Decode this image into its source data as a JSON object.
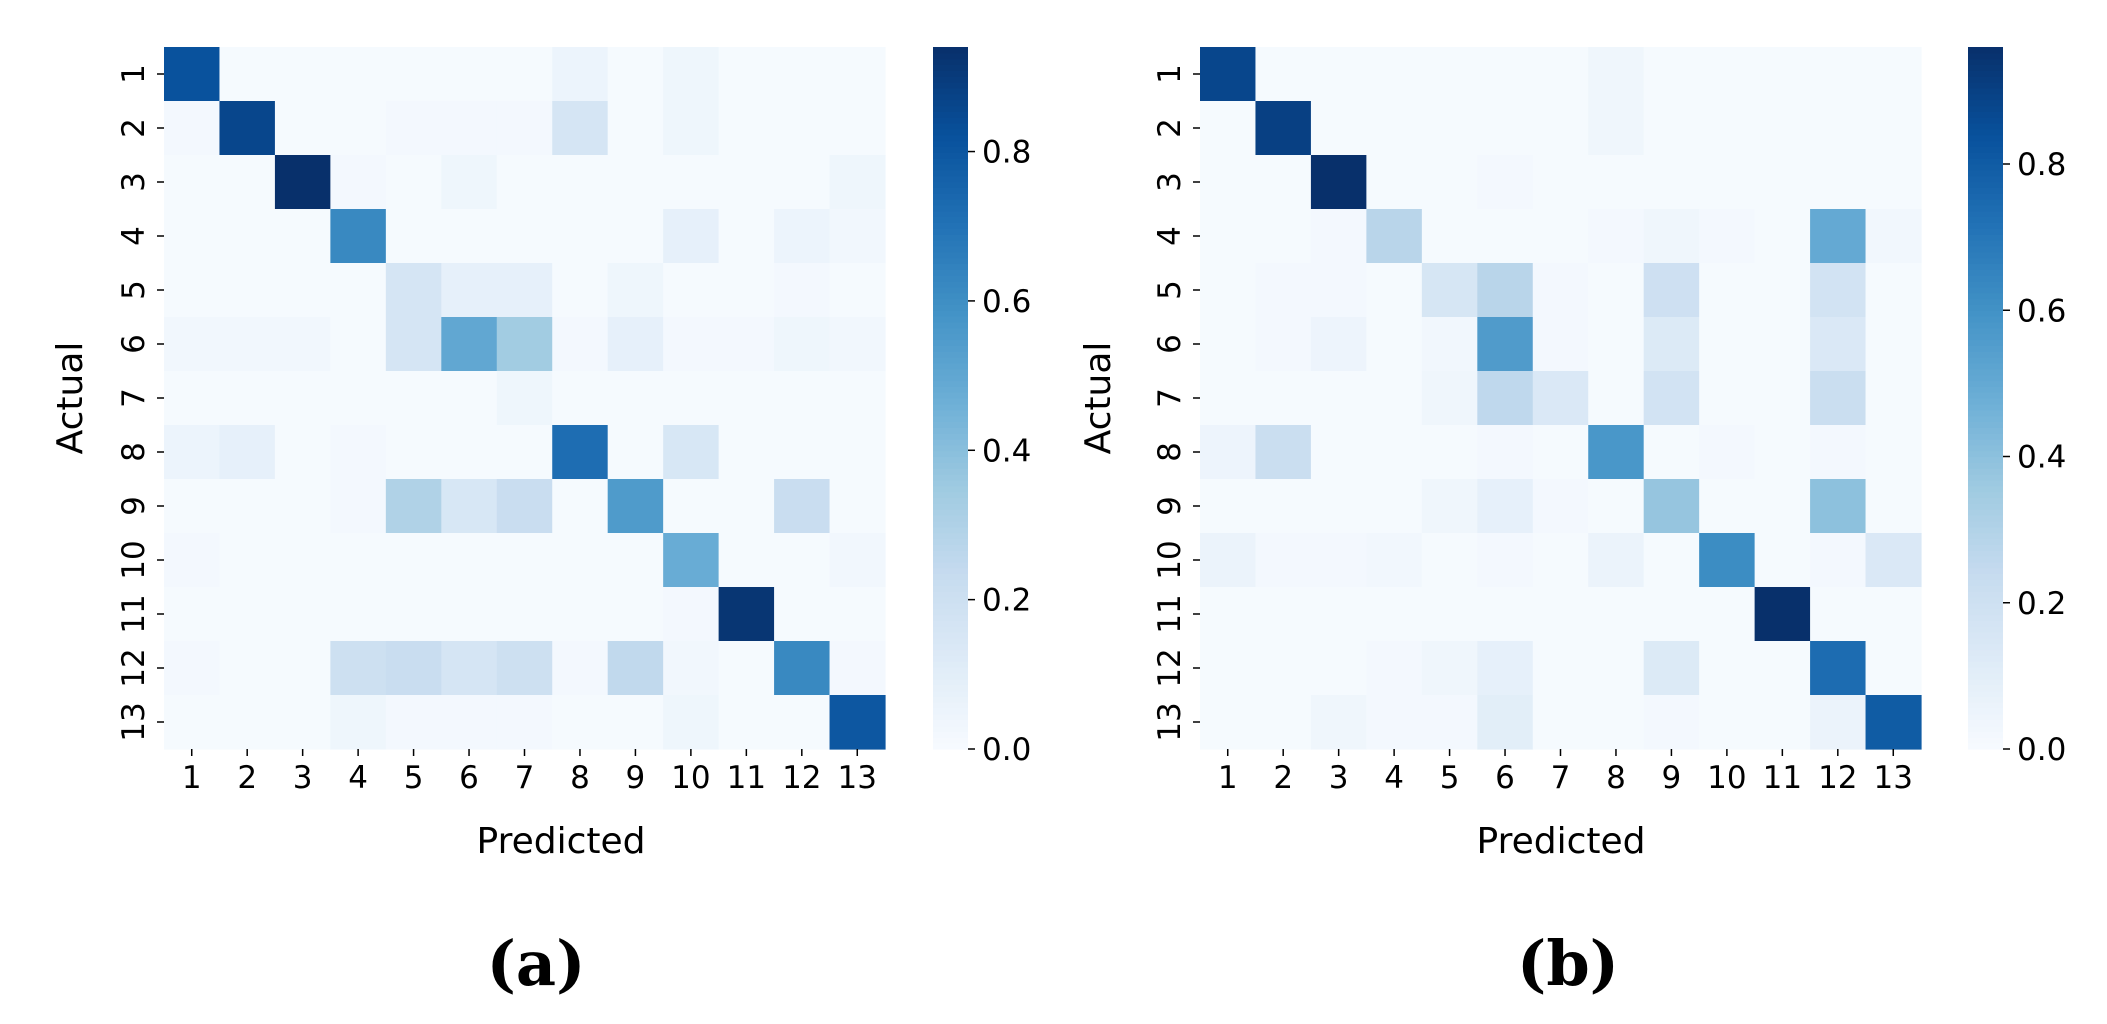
{
  "chart_data": [
    {
      "type": "heatmap",
      "title": "",
      "panel_label": "(a)",
      "xlabel": "Predicted",
      "ylabel": "Actual",
      "x_categories": [
        "1",
        "2",
        "3",
        "4",
        "5",
        "6",
        "7",
        "8",
        "9",
        "10",
        "11",
        "12",
        "13"
      ],
      "y_categories": [
        "1",
        "2",
        "3",
        "4",
        "5",
        "6",
        "7",
        "8",
        "9",
        "10",
        "11",
        "12",
        "13"
      ],
      "colorbar": {
        "range": [
          0,
          0.94
        ],
        "ticks": [
          0.0,
          0.2,
          0.4,
          0.6,
          0.8
        ],
        "tick_labels": [
          "0.0",
          "0.2",
          "0.4",
          "0.6",
          "0.8"
        ],
        "colormap": "Blues"
      },
      "values": [
        [
          0.82,
          0.01,
          0.01,
          0.01,
          0.01,
          0.01,
          0.01,
          0.05,
          0.01,
          0.04,
          0.01,
          0.01,
          0.01
        ],
        [
          0.02,
          0.86,
          0.01,
          0.01,
          0.02,
          0.02,
          0.02,
          0.16,
          0.01,
          0.04,
          0.01,
          0.01,
          0.01
        ],
        [
          0.01,
          0.01,
          0.94,
          0.02,
          0.01,
          0.04,
          0.01,
          0.01,
          0.01,
          0.01,
          0.01,
          0.01,
          0.04
        ],
        [
          0.01,
          0.01,
          0.01,
          0.62,
          0.01,
          0.01,
          0.01,
          0.01,
          0.01,
          0.08,
          0.01,
          0.05,
          0.03
        ],
        [
          0.01,
          0.01,
          0.01,
          0.01,
          0.16,
          0.08,
          0.08,
          0.01,
          0.04,
          0.01,
          0.01,
          0.02,
          0.01
        ],
        [
          0.03,
          0.03,
          0.03,
          0.01,
          0.16,
          0.5,
          0.34,
          0.02,
          0.08,
          0.02,
          0.02,
          0.04,
          0.03
        ],
        [
          0.01,
          0.01,
          0.01,
          0.01,
          0.01,
          0.01,
          0.04,
          0.01,
          0.01,
          0.01,
          0.01,
          0.01,
          0.01
        ],
        [
          0.05,
          0.08,
          0.01,
          0.02,
          0.01,
          0.01,
          0.01,
          0.72,
          0.01,
          0.15,
          0.01,
          0.01,
          0.01
        ],
        [
          0.01,
          0.01,
          0.01,
          0.02,
          0.3,
          0.15,
          0.22,
          0.01,
          0.55,
          0.01,
          0.01,
          0.22,
          0.01
        ],
        [
          0.02,
          0.01,
          0.01,
          0.01,
          0.01,
          0.01,
          0.01,
          0.01,
          0.01,
          0.48,
          0.01,
          0.01,
          0.03
        ],
        [
          0.01,
          0.01,
          0.01,
          0.01,
          0.01,
          0.01,
          0.01,
          0.01,
          0.01,
          0.02,
          0.92,
          0.01,
          0.01
        ],
        [
          0.02,
          0.01,
          0.01,
          0.2,
          0.22,
          0.16,
          0.2,
          0.02,
          0.25,
          0.03,
          0.01,
          0.62,
          0.02
        ],
        [
          0.01,
          0.01,
          0.01,
          0.04,
          0.02,
          0.02,
          0.02,
          0.01,
          0.01,
          0.04,
          0.01,
          0.01,
          0.8
        ]
      ]
    },
    {
      "type": "heatmap",
      "title": "",
      "panel_label": "(b)",
      "xlabel": "Predicted",
      "ylabel": "Actual",
      "x_categories": [
        "1",
        "2",
        "3",
        "4",
        "5",
        "6",
        "7",
        "8",
        "9",
        "10",
        "11",
        "12",
        "13"
      ],
      "y_categories": [
        "1",
        "2",
        "3",
        "4",
        "5",
        "6",
        "7",
        "8",
        "9",
        "10",
        "11",
        "12",
        "13"
      ],
      "colorbar": {
        "range": [
          0,
          0.96
        ],
        "ticks": [
          0.0,
          0.2,
          0.4,
          0.6,
          0.8
        ],
        "tick_labels": [
          "0.0",
          "0.2",
          "0.4",
          "0.6",
          "0.8"
        ],
        "colormap": "Blues"
      },
      "values": [
        [
          0.88,
          0.01,
          0.01,
          0.01,
          0.01,
          0.01,
          0.01,
          0.04,
          0.01,
          0.01,
          0.01,
          0.01,
          0.01
        ],
        [
          0.01,
          0.9,
          0.01,
          0.01,
          0.01,
          0.01,
          0.01,
          0.04,
          0.01,
          0.01,
          0.01,
          0.01,
          0.01
        ],
        [
          0.01,
          0.01,
          0.96,
          0.01,
          0.01,
          0.02,
          0.01,
          0.01,
          0.01,
          0.01,
          0.01,
          0.01,
          0.01
        ],
        [
          0.01,
          0.01,
          0.02,
          0.28,
          0.01,
          0.01,
          0.01,
          0.02,
          0.04,
          0.02,
          0.01,
          0.5,
          0.03
        ],
        [
          0.01,
          0.02,
          0.02,
          0.01,
          0.16,
          0.28,
          0.02,
          0.01,
          0.2,
          0.01,
          0.01,
          0.18,
          0.01
        ],
        [
          0.01,
          0.02,
          0.05,
          0.01,
          0.03,
          0.56,
          0.02,
          0.01,
          0.13,
          0.01,
          0.01,
          0.14,
          0.01
        ],
        [
          0.01,
          0.01,
          0.01,
          0.01,
          0.04,
          0.26,
          0.14,
          0.01,
          0.18,
          0.01,
          0.01,
          0.22,
          0.01
        ],
        [
          0.05,
          0.22,
          0.01,
          0.01,
          0.01,
          0.02,
          0.01,
          0.58,
          0.01,
          0.02,
          0.01,
          0.02,
          0.01
        ],
        [
          0.01,
          0.01,
          0.01,
          0.01,
          0.04,
          0.08,
          0.02,
          0.01,
          0.38,
          0.01,
          0.01,
          0.4,
          0.01
        ],
        [
          0.06,
          0.02,
          0.02,
          0.03,
          0.01,
          0.02,
          0.01,
          0.06,
          0.01,
          0.62,
          0.01,
          0.02,
          0.14
        ],
        [
          0.01,
          0.01,
          0.01,
          0.01,
          0.01,
          0.01,
          0.01,
          0.01,
          0.01,
          0.01,
          0.96,
          0.01,
          0.01
        ],
        [
          0.01,
          0.01,
          0.01,
          0.02,
          0.04,
          0.08,
          0.01,
          0.01,
          0.13,
          0.01,
          0.01,
          0.74,
          0.01
        ],
        [
          0.01,
          0.01,
          0.04,
          0.02,
          0.02,
          0.1,
          0.01,
          0.01,
          0.02,
          0.01,
          0.01,
          0.06,
          0.8
        ]
      ]
    }
  ]
}
